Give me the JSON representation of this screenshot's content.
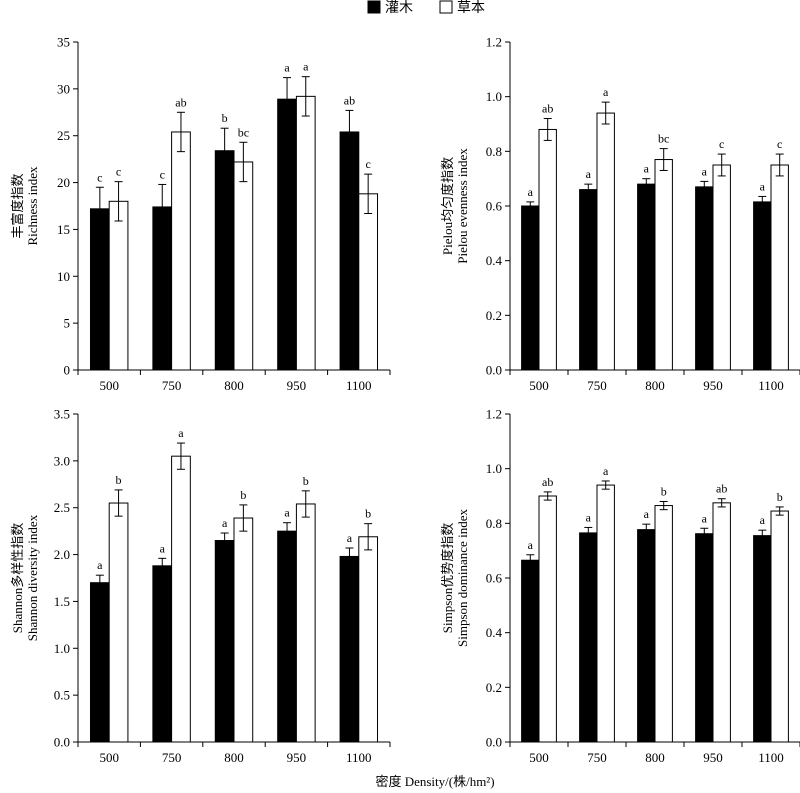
{
  "legend": [
    {
      "name": "灌木",
      "fill": "#000000"
    },
    {
      "name": "草本",
      "fill": "#ffffff"
    }
  ],
  "xlabel": "密度 Density/(株/hm²)",
  "chart_data": [
    {
      "type": "bar",
      "ylabel": [
        "丰富度指数",
        "Richness index"
      ],
      "categories": [
        "500",
        "750",
        "800",
        "950",
        "1100"
      ],
      "ylim": [
        0,
        35
      ],
      "yticks": [
        0,
        5,
        10,
        15,
        20,
        25,
        30,
        35
      ],
      "tick_decimals": 0,
      "series": [
        {
          "name": "灌木",
          "values": [
            17.2,
            17.4,
            23.4,
            28.9,
            25.4
          ],
          "errors": [
            2.3,
            2.4,
            2.4,
            2.3,
            2.3
          ],
          "labels": [
            "c",
            "c",
            "b",
            "a",
            "ab"
          ]
        },
        {
          "name": "草本",
          "values": [
            18.0,
            25.4,
            22.2,
            29.2,
            18.8
          ],
          "errors": [
            2.1,
            2.1,
            2.1,
            2.1,
            2.1
          ],
          "labels": [
            "c",
            "ab",
            "bc",
            "a",
            "c"
          ]
        }
      ]
    },
    {
      "type": "bar",
      "ylabel": [
        "Pielou均匀度指数",
        "Pielou evenness index"
      ],
      "categories": [
        "500",
        "750",
        "800",
        "950",
        "1100"
      ],
      "ylim": [
        0,
        1.2
      ],
      "yticks": [
        0,
        0.2,
        0.4,
        0.6,
        0.8,
        1.0,
        1.2
      ],
      "tick_decimals": 1,
      "series": [
        {
          "name": "灌木",
          "values": [
            0.6,
            0.66,
            0.68,
            0.67,
            0.615
          ],
          "errors": [
            0.015,
            0.02,
            0.02,
            0.02,
            0.02
          ],
          "labels": [
            "a",
            "a",
            "a",
            "a",
            "a"
          ]
        },
        {
          "name": "草本",
          "values": [
            0.88,
            0.94,
            0.77,
            0.75,
            0.75
          ],
          "errors": [
            0.04,
            0.04,
            0.04,
            0.04,
            0.04
          ],
          "labels": [
            "ab",
            "a",
            "bc",
            "c",
            "c"
          ]
        }
      ]
    },
    {
      "type": "bar",
      "ylabel": [
        "Shannon多样性指数",
        "Shannon diversity index"
      ],
      "categories": [
        "500",
        "750",
        "800",
        "950",
        "1100"
      ],
      "ylim": [
        0,
        3.5
      ],
      "yticks": [
        0,
        0.5,
        1.0,
        1.5,
        2.0,
        2.5,
        3.0,
        3.5
      ],
      "tick_decimals": 1,
      "series": [
        {
          "name": "灌木",
          "values": [
            1.7,
            1.88,
            2.15,
            2.25,
            1.98
          ],
          "errors": [
            0.08,
            0.08,
            0.08,
            0.09,
            0.09
          ],
          "labels": [
            "a",
            "a",
            "a",
            "a",
            "a"
          ]
        },
        {
          "name": "草本",
          "values": [
            2.55,
            3.05,
            2.39,
            2.54,
            2.19
          ],
          "errors": [
            0.14,
            0.14,
            0.14,
            0.14,
            0.14
          ],
          "labels": [
            "b",
            "a",
            "b",
            "b",
            "b"
          ]
        }
      ]
    },
    {
      "type": "bar",
      "ylabel": [
        "Simpson优势度指数",
        "Simpson dominance index"
      ],
      "categories": [
        "500",
        "750",
        "800",
        "950",
        "1100"
      ],
      "ylim": [
        0,
        1.2
      ],
      "yticks": [
        0,
        0.2,
        0.4,
        0.6,
        0.8,
        1.0,
        1.2
      ],
      "tick_decimals": 1,
      "series": [
        {
          "name": "灌木",
          "values": [
            0.665,
            0.765,
            0.777,
            0.762,
            0.755
          ],
          "errors": [
            0.02,
            0.02,
            0.02,
            0.02,
            0.02
          ],
          "labels": [
            "a",
            "a",
            "a",
            "a",
            "a"
          ]
        },
        {
          "name": "草本",
          "values": [
            0.9,
            0.94,
            0.865,
            0.875,
            0.845
          ],
          "errors": [
            0.015,
            0.015,
            0.015,
            0.015,
            0.015
          ],
          "labels": [
            "ab",
            "a",
            "b",
            "ab",
            "b"
          ]
        }
      ]
    }
  ]
}
